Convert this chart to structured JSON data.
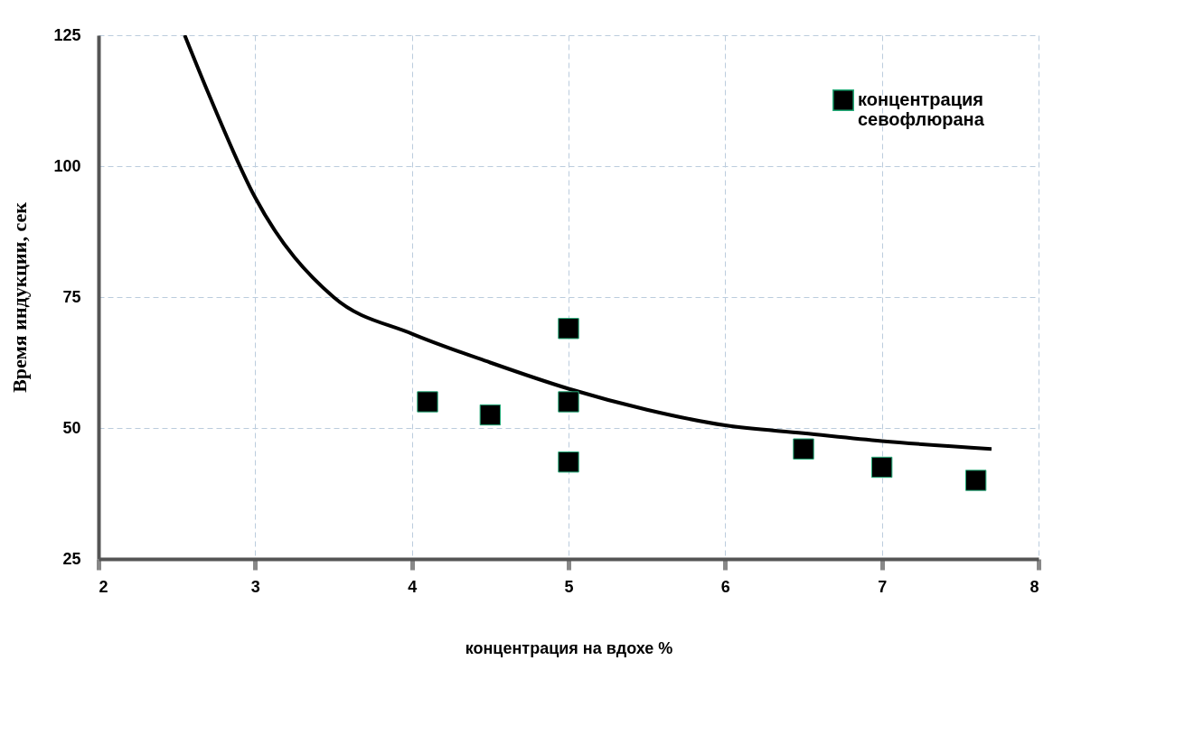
{
  "chart_data": {
    "type": "scatter",
    "xlabel": "концентрация на вдохе %",
    "ylabel": "Время индукции, сек",
    "xlim": [
      2,
      8
    ],
    "xticks": [
      2,
      3,
      4,
      5,
      6,
      7,
      8
    ],
    "ylim": [
      25,
      125
    ],
    "yticks": [
      25,
      50,
      75,
      100,
      125
    ],
    "grid": true,
    "legend": "top right",
    "marker": "square",
    "series": [
      {
        "type": "line",
        "marker": "none",
        "color": "#000000",
        "x": [
          2.55,
          2.7,
          3,
          3.5,
          4,
          4.5,
          5,
          5.5,
          6,
          6.5,
          7,
          7.7
        ],
        "values": [
          125,
          114,
          94,
          75,
          68,
          62.5,
          57.5,
          53.5,
          50.5,
          49,
          47.5,
          46
        ]
      },
      {
        "name": "концентрация севофлюрана",
        "color": "#000000",
        "x": [
          4.1,
          4.5,
          5,
          5,
          5,
          6.5,
          7,
          7.6
        ],
        "values": [
          55,
          52.5,
          69,
          55,
          43.5,
          46,
          42.5,
          40
        ]
      }
    ]
  }
}
